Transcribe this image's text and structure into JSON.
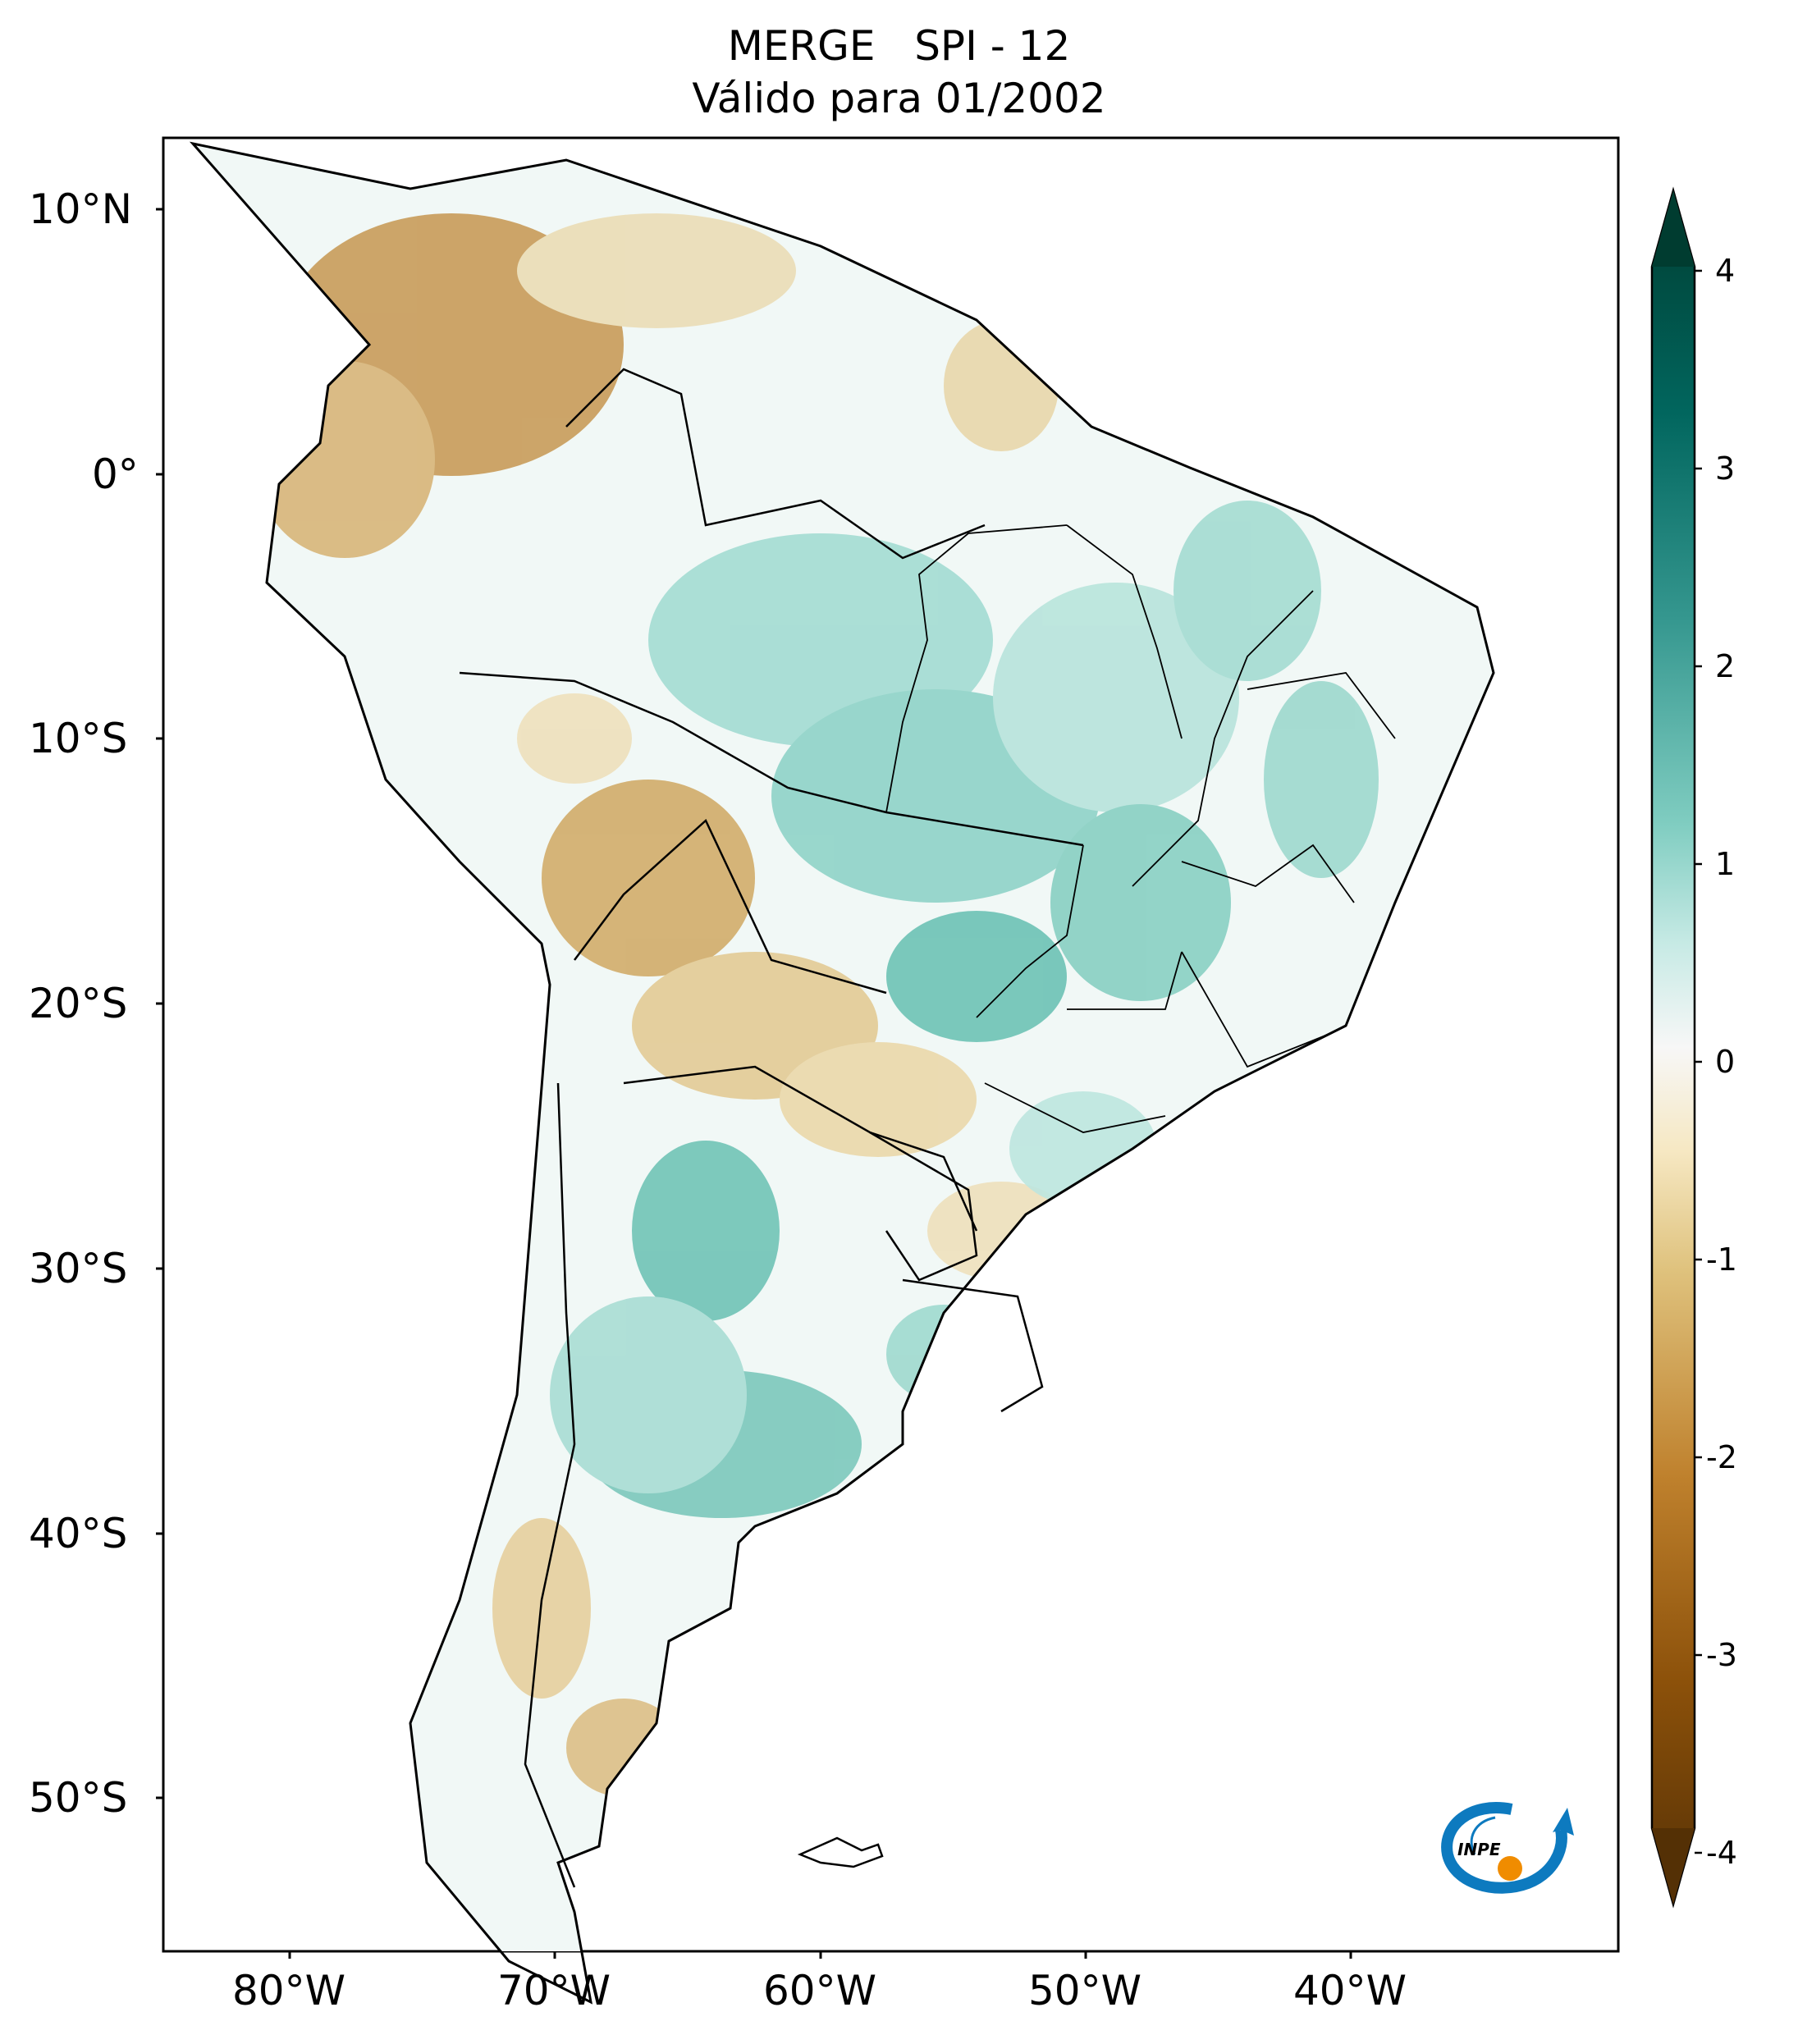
{
  "title": {
    "line1": "MERGE   SPI - 12",
    "line2": "Válido para 01/2002"
  },
  "axes": {
    "lat_labels": [
      "10°N",
      "0°",
      "10°S",
      "20°S",
      "30°S",
      "40°S",
      "50°S"
    ],
    "lon_labels": [
      "80°W",
      "70°W",
      "60°W",
      "50°W",
      "40°W"
    ]
  },
  "colorbar": {
    "ticks": [
      "4",
      "3",
      "2",
      "1",
      "0",
      "-1",
      "-2",
      "-3",
      "-4"
    ],
    "range": [
      -4,
      4
    ],
    "extend": "both",
    "colors": {
      "dry_dark": "#543005",
      "dry_mid": "#bf812d",
      "dry_light": "#f6e8c3",
      "neutral": "#f5f5f5",
      "wet_light": "#c7eae5",
      "wet_mid": "#35978f",
      "wet_dark": "#003c30"
    }
  },
  "logo": {
    "text": "INPE"
  }
}
